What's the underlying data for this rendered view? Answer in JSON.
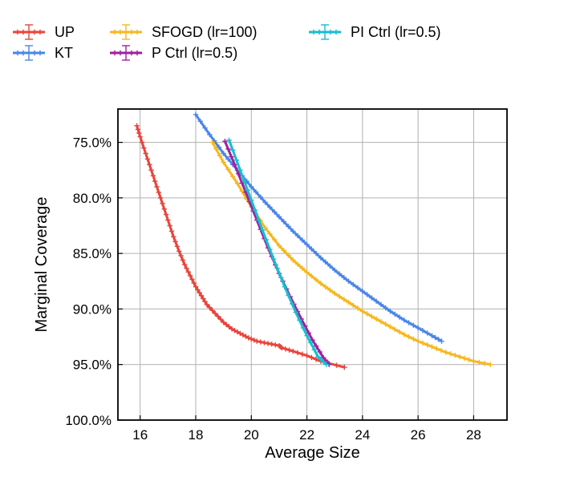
{
  "chart_data": {
    "type": "line",
    "title": "",
    "xlabel": "Average Size",
    "ylabel": "Marginal Coverage",
    "xlim": [
      15.2,
      29.2
    ],
    "ylim": [
      72.0,
      100.0
    ],
    "y_inverted": true,
    "grid": true,
    "legend_placement": "top-left, outside plot, 3 columns",
    "x_ticks": [
      16,
      18,
      20,
      22,
      24,
      26,
      28
    ],
    "x_tick_labels": [
      "16",
      "18",
      "20",
      "22",
      "24",
      "26",
      "28"
    ],
    "y_ticks": [
      75,
      80,
      85,
      90,
      95,
      100
    ],
    "y_tick_labels": [
      "75.0%",
      "80.0%",
      "85.0%",
      "90.0%",
      "95.0%",
      "100.0%"
    ],
    "series": [
      {
        "name": "UP",
        "color": "#e8453c",
        "x": [
          15.88,
          16.0,
          16.2,
          16.4,
          16.6,
          16.8,
          17.0,
          17.2,
          17.4,
          17.6,
          17.8,
          18.0,
          18.2,
          18.4,
          18.7,
          19.0,
          19.3,
          19.6,
          19.9,
          20.2,
          20.6,
          21.0,
          21.1,
          21.5,
          22.0,
          22.5,
          23.35
        ],
        "y": [
          73.5,
          74.5,
          76.0,
          77.5,
          79.0,
          80.5,
          82.0,
          83.5,
          84.8,
          86.0,
          87.0,
          88.0,
          88.8,
          89.6,
          90.4,
          91.2,
          91.8,
          92.2,
          92.6,
          92.9,
          93.1,
          93.3,
          93.5,
          93.8,
          94.2,
          94.7,
          95.25
        ]
      },
      {
        "name": "KT",
        "color": "#4a86e8",
        "x": [
          18.0,
          18.5,
          19.0,
          19.5,
          20.0,
          20.5,
          21.0,
          21.5,
          22.0,
          22.5,
          23.0,
          23.5,
          24.0,
          24.5,
          25.0,
          25.5,
          26.0,
          26.5,
          26.85
        ],
        "y": [
          72.5,
          74.3,
          76.0,
          77.5,
          79.0,
          80.4,
          81.7,
          83.0,
          84.2,
          85.4,
          86.5,
          87.5,
          88.4,
          89.3,
          90.2,
          91.0,
          91.7,
          92.4,
          92.9
        ]
      },
      {
        "name": "SFOGD (lr=100)",
        "color": "#f5b820",
        "x": [
          18.6,
          19.0,
          19.5,
          20.0,
          20.5,
          21.0,
          21.5,
          22.0,
          22.5,
          23.0,
          23.5,
          24.0,
          24.5,
          25.0,
          25.5,
          26.0,
          26.5,
          27.0,
          27.5,
          28.0,
          28.6
        ],
        "y": [
          75.0,
          76.8,
          78.7,
          80.8,
          82.7,
          84.3,
          85.6,
          86.7,
          87.7,
          88.6,
          89.4,
          90.2,
          90.9,
          91.6,
          92.3,
          92.9,
          93.4,
          93.9,
          94.3,
          94.7,
          95.0
        ]
      },
      {
        "name": "P Ctrl (lr=0.5)",
        "color": "#a020a0",
        "x": [
          19.05,
          19.4,
          19.8,
          20.2,
          20.6,
          21.0,
          21.4,
          21.8,
          22.2,
          22.6,
          22.8
        ],
        "y": [
          74.9,
          77.0,
          79.5,
          82.0,
          84.5,
          86.8,
          88.9,
          90.9,
          92.8,
          94.4,
          95.0
        ]
      },
      {
        "name": "PI Ctrl (lr=0.5)",
        "color": "#17becf",
        "x": [
          19.2,
          19.6,
          20.0,
          20.4,
          20.8,
          21.2,
          21.6,
          22.0,
          22.4,
          22.7
        ],
        "y": [
          74.8,
          77.5,
          80.2,
          82.9,
          85.5,
          88.0,
          90.3,
          92.4,
          94.3,
          95.0
        ]
      }
    ]
  }
}
